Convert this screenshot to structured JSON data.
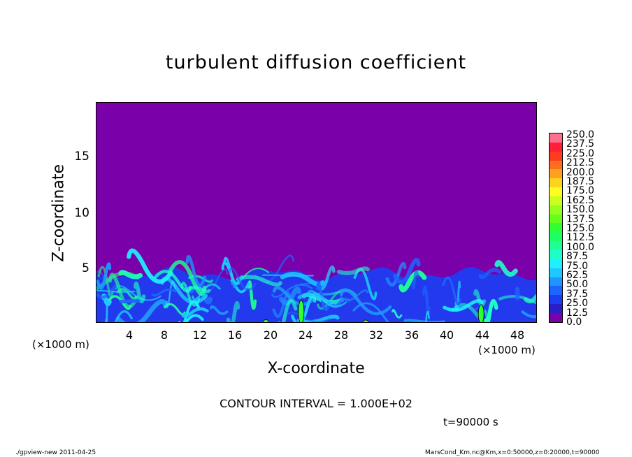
{
  "chart_data": {
    "type": "heatmap",
    "title": "turbulent diffusion coefficient",
    "xlabel": "X-coordinate",
    "ylabel": "Z-coordinate",
    "x_unit": "(×1000 m)",
    "y_unit": "(×1000 m)",
    "xlim": [
      0,
      50
    ],
    "ylim": [
      0,
      20
    ],
    "xticks": [
      "4",
      "8",
      "12",
      "16",
      "20",
      "24",
      "28",
      "32",
      "36",
      "40",
      "44",
      "48"
    ],
    "yticks": [
      "5",
      "10",
      "15"
    ],
    "colorbar_levels": [
      "0.0",
      "12.5",
      "25.0",
      "37.5",
      "50.0",
      "62.5",
      "75.0",
      "87.5",
      "100.0",
      "112.5",
      "125.0",
      "137.5",
      "150.0",
      "162.5",
      "175.0",
      "187.5",
      "200.0",
      "212.5",
      "225.0",
      "237.5",
      "250.0"
    ],
    "colorbar_colors": [
      "#7a00aa",
      "#2a1ec8",
      "#1e3cf0",
      "#1e64ff",
      "#1e96ff",
      "#1ec8ff",
      "#1ef0ff",
      "#1effc8",
      "#1eff96",
      "#1eff64",
      "#32ff32",
      "#64ff1e",
      "#96ff1e",
      "#c8ff1e",
      "#ffff1e",
      "#ffd21e",
      "#ffa01e",
      "#ff6e1e",
      "#ff3c1e",
      "#ff1e3c",
      "#ff6e8c"
    ],
    "turbulent_layer_top": 5.4,
    "contour_interval": "CONTOUR INTERVAL = 1.000E+02",
    "time": "t=90000 s"
  },
  "footer": {
    "left": "./gpview-new  2011-04-25",
    "right": "MarsCond_Km.nc@Km,x=0:50000,z=0:20000,t=90000"
  }
}
